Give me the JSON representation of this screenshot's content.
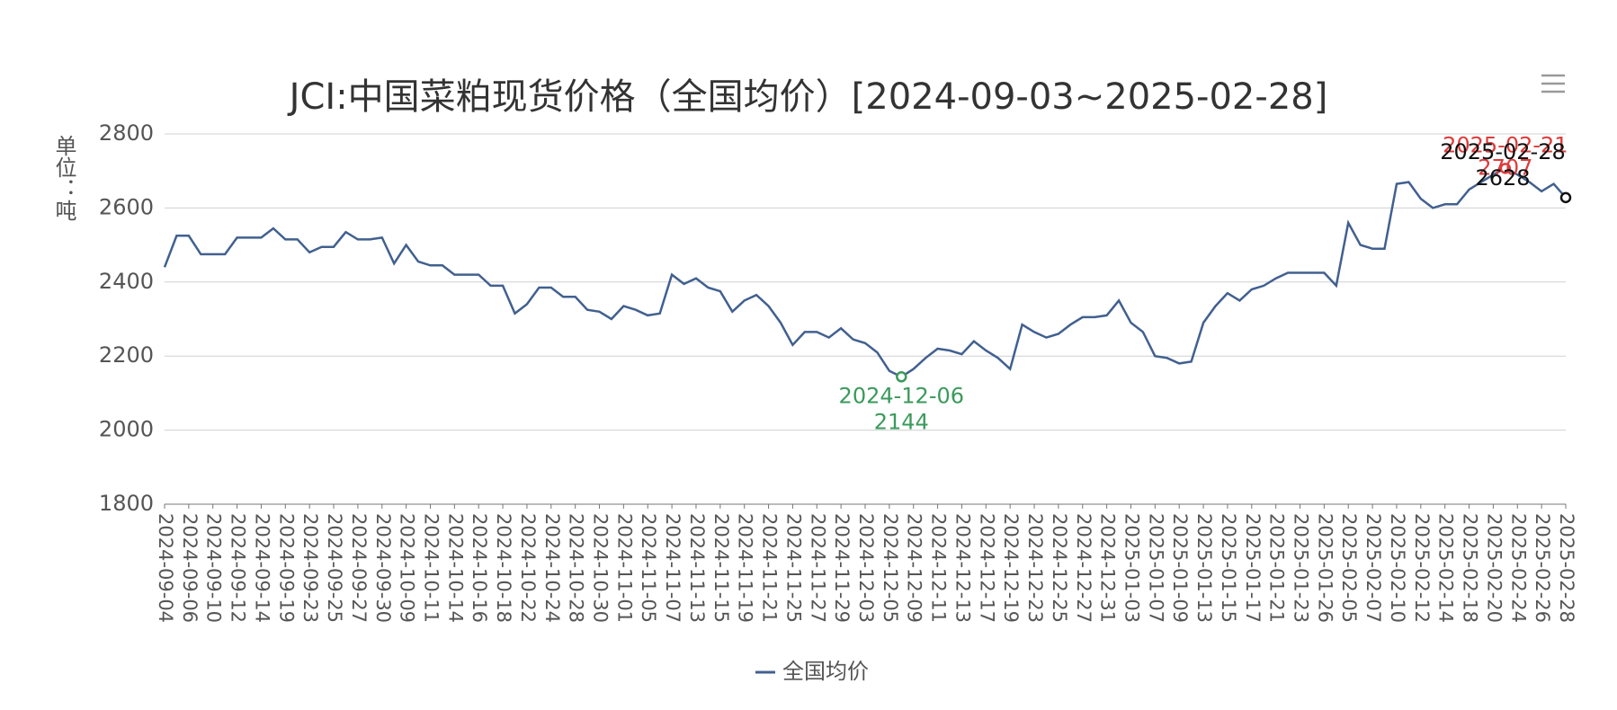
{
  "chart_data": {
    "type": "line",
    "title": "JCI:中国菜粕现货价格（全国均价）[2024-09-03~2025-02-28]",
    "y_label": "单位：吨",
    "categories": [
      "2024-09-04",
      null,
      "2024-09-06",
      null,
      "2024-09-10",
      null,
      "2024-09-12",
      null,
      "2024-09-14",
      null,
      "2024-09-19",
      null,
      "2024-09-23",
      null,
      "2024-09-25",
      null,
      "2024-09-27",
      null,
      "2024-09-30",
      null,
      "2024-10-09",
      null,
      "2024-10-11",
      null,
      "2024-10-14",
      null,
      "2024-10-16",
      null,
      "2024-10-18",
      null,
      "2024-10-22",
      null,
      "2024-10-24",
      null,
      "2024-10-28",
      null,
      "2024-10-30",
      null,
      "2024-11-01",
      null,
      "2024-11-05",
      null,
      "2024-11-07",
      null,
      "2024-11-13",
      null,
      "2024-11-15",
      null,
      "2024-11-19",
      null,
      "2024-11-21",
      null,
      "2024-11-25",
      null,
      "2024-11-27",
      null,
      "2024-11-29",
      null,
      "2024-12-03",
      null,
      "2024-12-05",
      null,
      "2024-12-09",
      null,
      "2024-12-11",
      null,
      "2024-12-13",
      null,
      "2024-12-17",
      null,
      "2024-12-19",
      null,
      "2024-12-23",
      null,
      "2024-12-25",
      null,
      "2024-12-27",
      null,
      "2024-12-31",
      null,
      "2025-01-03",
      null,
      "2025-01-07",
      null,
      "2025-01-09",
      null,
      "2025-01-13",
      null,
      "2025-01-15",
      null,
      "2025-01-17",
      null,
      "2025-01-21",
      null,
      "2025-01-23",
      null,
      "2025-01-26",
      null,
      "2025-02-05",
      null,
      "2025-02-07",
      null,
      "2025-02-10",
      null,
      "2025-02-12",
      null,
      "2025-02-14",
      null,
      "2025-02-18",
      null,
      "2025-02-20",
      null,
      "2025-02-24",
      null,
      "2025-02-26",
      null,
      "2025-02-28"
    ],
    "series": [
      {
        "name": "全国均价",
        "color": "#41608f",
        "values": [
          2440,
          2525,
          2525,
          2475,
          2475,
          2475,
          2520,
          2520,
          2520,
          2545,
          2515,
          2515,
          2480,
          2495,
          2495,
          2535,
          2515,
          2515,
          2520,
          2450,
          2500,
          2455,
          2445,
          2445,
          2420,
          2420,
          2420,
          2390,
          2390,
          2315,
          2340,
          2385,
          2385,
          2360,
          2360,
          2325,
          2320,
          2300,
          2335,
          2325,
          2310,
          2315,
          2420,
          2395,
          2410,
          2385,
          2375,
          2320,
          2350,
          2365,
          2335,
          2290,
          2230,
          2265,
          2265,
          2250,
          2275,
          2245,
          2235,
          2210,
          2160,
          2144,
          2165,
          2195,
          2220,
          2215,
          2205,
          2240,
          2215,
          2195,
          2165,
          2285,
          2265,
          2250,
          2260,
          2285,
          2305,
          2305,
          2310,
          2350,
          2290,
          2265,
          2200,
          2195,
          2180,
          2185,
          2290,
          2335,
          2370,
          2350,
          2380,
          2390,
          2410,
          2425,
          2425,
          2425,
          2425,
          2390,
          2560,
          2500,
          2490,
          2490,
          2665,
          2670,
          2625,
          2600,
          2610,
          2610,
          2650,
          2670,
          2690,
          2707,
          2690,
          2670,
          2645,
          2665,
          2628
        ]
      }
    ],
    "annotations": [
      {
        "type": "min",
        "label": "2024-12-06",
        "value": 2144,
        "color": "#3a9a5b"
      },
      {
        "type": "max",
        "label": "2025-02-21",
        "value": 2707,
        "color": "#e03b3b"
      },
      {
        "type": "last",
        "label": "2025-02-28",
        "value": 2628,
        "color": "#111111"
      }
    ],
    "ylim": [
      1800,
      2800
    ],
    "yticks": [
      1800,
      2000,
      2200,
      2400,
      2600,
      2800
    ],
    "grid": true,
    "legend": "bottom"
  }
}
